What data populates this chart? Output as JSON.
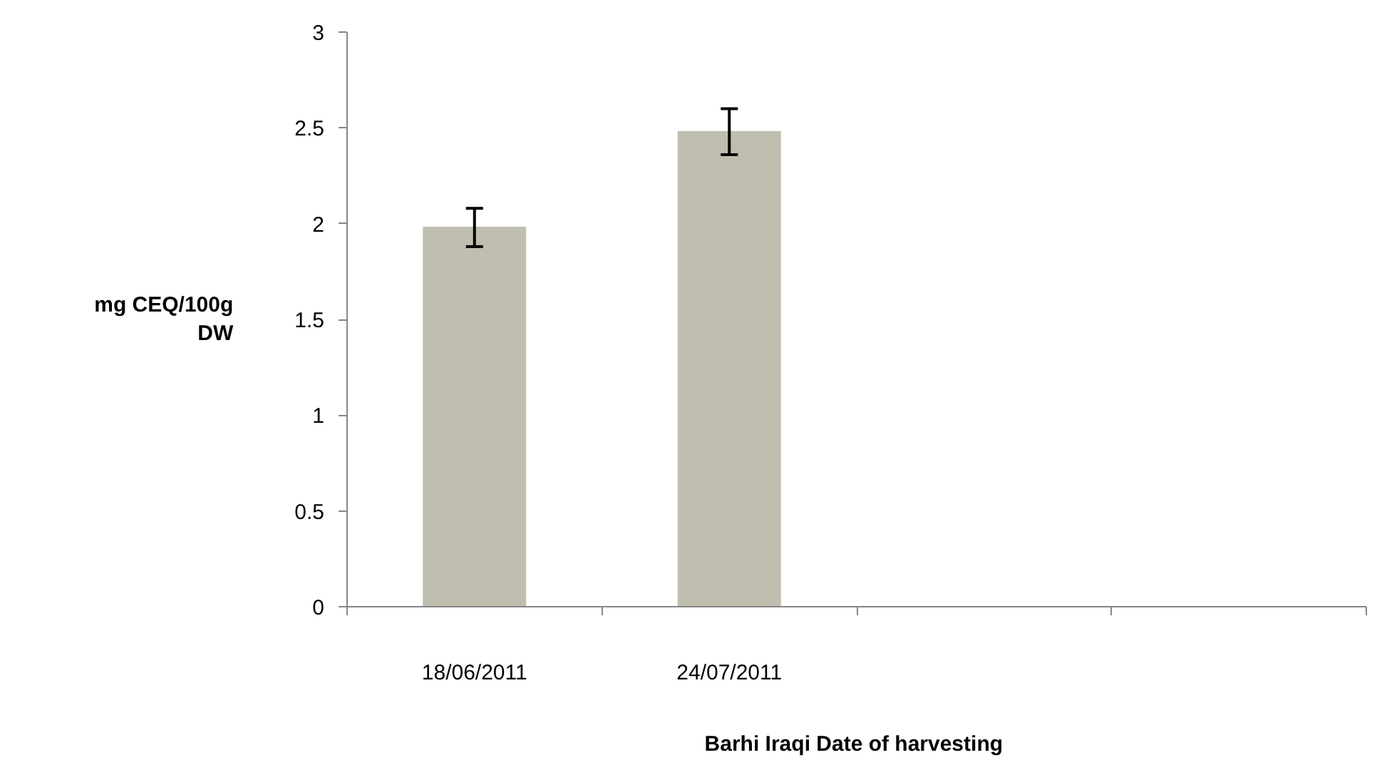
{
  "chart_data": {
    "type": "bar",
    "categories": [
      "18/06/2011",
      "24/07/2011",
      null,
      null
    ],
    "values": [
      1.98,
      2.48,
      null,
      null
    ],
    "errors": [
      0.1,
      0.12,
      null,
      null
    ],
    "color": "#c0bfaf",
    "ylim": [
      0,
      3
    ],
    "yticks": [
      0,
      0.5,
      1,
      1.5,
      2,
      2.5,
      3
    ],
    "xlabel": "Barhi Iraqi  Date of harvesting",
    "ylabel": "mg CEQ/100g DW",
    "grid": false
  }
}
